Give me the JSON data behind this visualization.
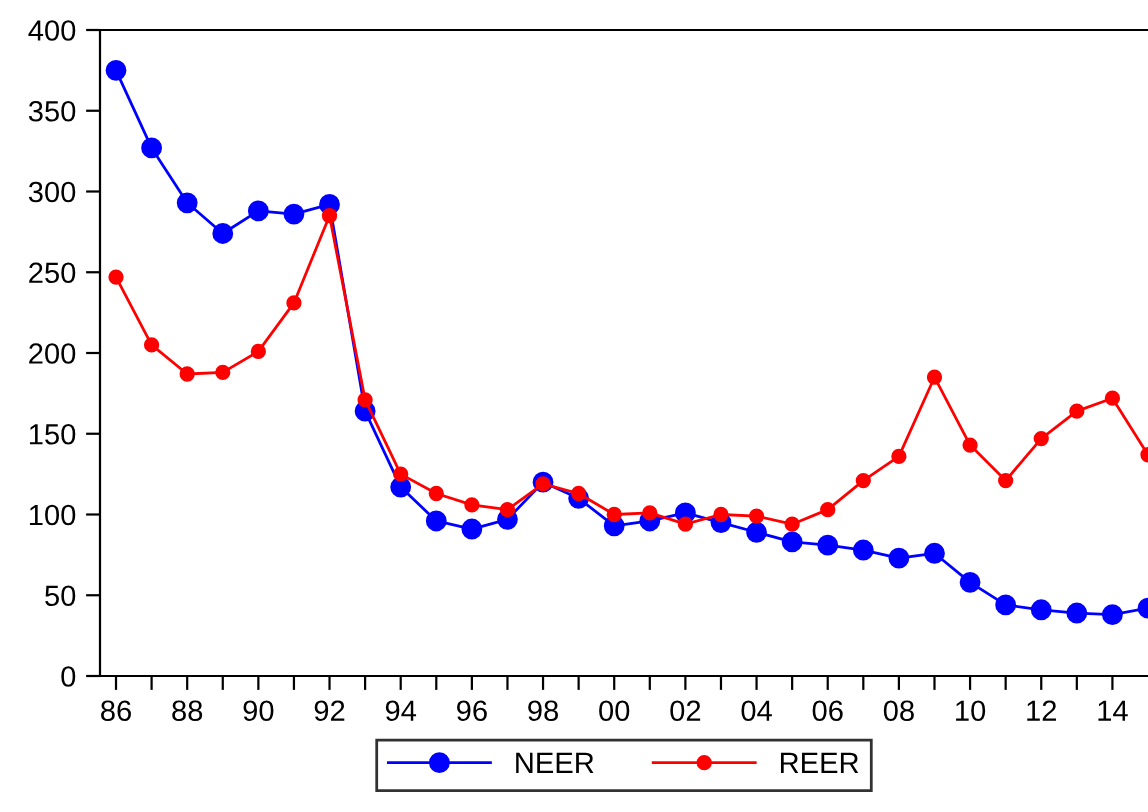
{
  "chart_data": {
    "type": "line",
    "x": [
      1986,
      1987,
      1988,
      1989,
      1990,
      1991,
      1992,
      1993,
      1994,
      1995,
      1996,
      1997,
      1998,
      1999,
      2000,
      2001,
      2002,
      2003,
      2004,
      2005,
      2006,
      2007,
      2008,
      2009,
      2010,
      2011,
      2012,
      2013,
      2014,
      2015
    ],
    "series": [
      {
        "name": "NEER",
        "color": "#0000ff",
        "marker": "circle",
        "values": [
          375,
          327,
          293,
          274,
          288,
          286,
          292,
          164,
          117,
          96,
          91,
          97,
          120,
          110,
          93,
          96,
          101,
          95,
          89,
          83,
          81,
          78,
          73,
          76,
          58,
          44,
          41,
          39,
          38,
          42
        ]
      },
      {
        "name": "REER",
        "color": "#ff0000",
        "marker": "circle",
        "values": [
          247,
          205,
          187,
          188,
          201,
          231,
          285,
          171,
          125,
          113,
          106,
          103,
          119,
          113,
          100,
          101,
          94,
          100,
          99,
          94,
          103,
          121,
          136,
          185,
          143,
          121,
          147,
          164,
          172,
          137
        ]
      }
    ],
    "xlim": [
      1985.55,
      2015
    ],
    "xticks": [
      {
        "value": 1986,
        "label": "86"
      },
      {
        "value": 1987,
        "label": null
      },
      {
        "value": 1988,
        "label": "88"
      },
      {
        "value": 1989,
        "label": null
      },
      {
        "value": 1990,
        "label": "90"
      },
      {
        "value": 1991,
        "label": null
      },
      {
        "value": 1992,
        "label": "92"
      },
      {
        "value": 1993,
        "label": null
      },
      {
        "value": 1994,
        "label": "94"
      },
      {
        "value": 1995,
        "label": null
      },
      {
        "value": 1996,
        "label": "96"
      },
      {
        "value": 1997,
        "label": null
      },
      {
        "value": 1998,
        "label": "98"
      },
      {
        "value": 1999,
        "label": null
      },
      {
        "value": 2000,
        "label": "00"
      },
      {
        "value": 2001,
        "label": null
      },
      {
        "value": 2002,
        "label": "02"
      },
      {
        "value": 2003,
        "label": null
      },
      {
        "value": 2004,
        "label": "04"
      },
      {
        "value": 2005,
        "label": null
      },
      {
        "value": 2006,
        "label": "06"
      },
      {
        "value": 2007,
        "label": null
      },
      {
        "value": 2008,
        "label": "08"
      },
      {
        "value": 2009,
        "label": null
      },
      {
        "value": 2010,
        "label": "10"
      },
      {
        "value": 2011,
        "label": null
      },
      {
        "value": 2012,
        "label": "12"
      },
      {
        "value": 2013,
        "label": null
      },
      {
        "value": 2014,
        "label": "14"
      }
    ],
    "ylim": [
      0,
      400
    ],
    "yticks": [
      0,
      50,
      100,
      150,
      200,
      250,
      300,
      350,
      400
    ],
    "legend": "bottom",
    "grid": false,
    "line_style": "solid"
  }
}
